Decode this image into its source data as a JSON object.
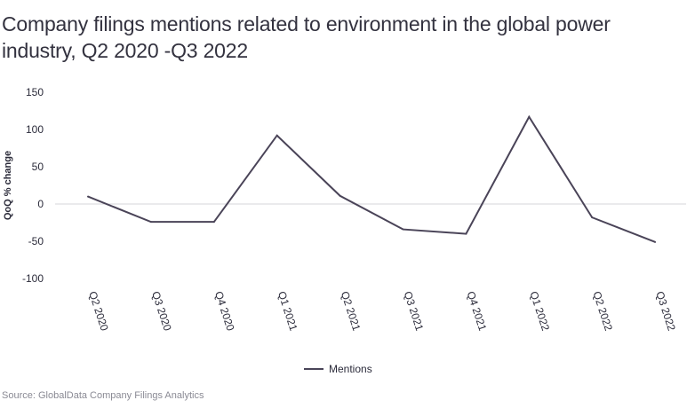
{
  "chart_data": {
    "type": "line",
    "title": "Company filings mentions related to environment in the global power industry, Q2 2020 -Q3 2022",
    "xlabel": "",
    "ylabel": "QoQ % change",
    "categories": [
      "Q2 2020",
      "Q3 2020",
      "Q4 2020",
      "Q1 2021",
      "Q2 2021",
      "Q3 2021",
      "Q4 2021",
      "Q1 2022",
      "Q2 2022",
      "Q3 2022"
    ],
    "series": [
      {
        "name": "Mentions",
        "values": [
          10,
          -24,
          -24,
          92,
          11,
          -34,
          -40,
          117,
          -18,
          -51
        ],
        "color": "#4a4458"
      }
    ],
    "ylim": [
      -100,
      150
    ],
    "yticks": [
      150,
      100,
      50,
      0,
      -50,
      -100
    ],
    "legend": "bottom-center",
    "grid": false
  },
  "source": "Source: GlobalData Company Filings Analytics"
}
